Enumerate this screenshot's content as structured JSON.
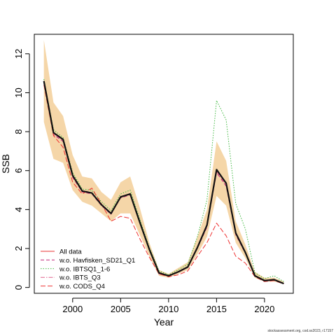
{
  "chart_data": {
    "type": "line",
    "xlabel": "Year",
    "ylabel": "SSB",
    "xlim": [
      1996,
      2023
    ],
    "ylim": [
      -0.3,
      13.0
    ],
    "xticks": [
      2000,
      2005,
      2010,
      2015,
      2020
    ],
    "yticks": [
      0,
      2,
      4,
      6,
      8,
      10,
      12
    ],
    "grid": false,
    "legend_position": "bottom-left",
    "x": [
      1997,
      1998,
      1999,
      2000,
      2001,
      2002,
      2003,
      2004,
      2005,
      2006,
      2007,
      2008,
      2009,
      2010,
      2011,
      2012,
      2013,
      2014,
      2015,
      2016,
      2017,
      2018,
      2019,
      2020,
      2021,
      2022
    ],
    "band": {
      "color": "#f5d6a8",
      "lower": [
        8.5,
        6.6,
        6.4,
        5.0,
        4.4,
        4.2,
        3.8,
        3.4,
        3.8,
        3.8,
        2.7,
        1.6,
        0.6,
        0.5,
        0.7,
        0.9,
        1.7,
        2.6,
        4.7,
        4.2,
        2.3,
        1.5,
        0.5,
        0.3,
        0.3,
        0.2
      ],
      "upper": [
        12.7,
        9.5,
        8.8,
        6.8,
        5.7,
        5.6,
        4.9,
        4.5,
        5.4,
        5.7,
        4.1,
        2.3,
        0.9,
        0.7,
        1.0,
        1.3,
        2.6,
        4.0,
        7.5,
        6.5,
        3.4,
        2.2,
        0.8,
        0.5,
        0.5,
        0.3
      ]
    },
    "series": [
      {
        "name": "All data",
        "color": "#e83030",
        "dash": "",
        "width": 1,
        "values": [
          10.6,
          7.95,
          7.6,
          5.75,
          4.95,
          4.85,
          4.25,
          3.8,
          4.65,
          4.8,
          3.35,
          1.95,
          0.75,
          0.6,
          0.8,
          1.05,
          2.05,
          3.2,
          6.05,
          5.35,
          2.8,
          1.8,
          0.6,
          0.35,
          0.4,
          0.2
        ]
      },
      {
        "name": "w.o. Havfisken_SD21_Q1",
        "color": "#c0287a",
        "dash": "5,3",
        "width": 1,
        "values": [
          10.5,
          7.85,
          7.5,
          5.65,
          4.9,
          4.8,
          4.2,
          3.75,
          4.6,
          4.75,
          3.3,
          1.9,
          0.7,
          0.58,
          0.78,
          1.03,
          2.0,
          3.1,
          5.9,
          5.2,
          2.7,
          1.75,
          0.58,
          0.33,
          0.38,
          0.19
        ]
      },
      {
        "name": "w.o. IBTSQ1_1-6",
        "color": "#3fb83f",
        "dash": "1.5,2",
        "width": 1,
        "values": [
          10.7,
          8.1,
          7.7,
          5.9,
          5.05,
          5.0,
          4.4,
          3.95,
          4.8,
          5.0,
          3.5,
          2.05,
          0.85,
          0.65,
          0.9,
          1.2,
          2.6,
          4.5,
          9.6,
          8.6,
          4.3,
          3.0,
          0.75,
          0.45,
          0.6,
          0.3
        ]
      },
      {
        "name": "w.o. IBTS_Q3",
        "color": "#e0608a",
        "dash": "6,2,1.5,2",
        "width": 1,
        "values": [
          10.55,
          7.9,
          7.55,
          5.7,
          4.92,
          4.82,
          4.22,
          3.78,
          4.62,
          4.78,
          3.32,
          1.93,
          0.73,
          0.59,
          0.79,
          1.04,
          2.02,
          3.15,
          5.95,
          5.25,
          2.75,
          1.78,
          0.59,
          0.34,
          0.39,
          0.19
        ]
      },
      {
        "name": "w.o. CODS_Q4",
        "color": "#ee3030",
        "dash": "7,3",
        "width": 1,
        "values": [
          10.4,
          7.8,
          7.2,
          5.4,
          4.8,
          5.1,
          4.3,
          3.4,
          3.65,
          3.55,
          2.5,
          1.55,
          0.7,
          0.55,
          0.65,
          0.85,
          1.6,
          2.3,
          3.3,
          2.65,
          1.6,
          1.25,
          0.55,
          0.3,
          0.35,
          0.18
        ]
      },
      {
        "name": "",
        "color": "#111111",
        "dash": "",
        "width": 2.2,
        "values": [
          10.6,
          7.95,
          7.6,
          5.75,
          4.95,
          4.85,
          4.25,
          3.8,
          4.65,
          4.8,
          3.35,
          1.95,
          0.75,
          0.6,
          0.8,
          1.05,
          2.05,
          3.2,
          6.05,
          5.35,
          2.8,
          1.8,
          0.6,
          0.35,
          0.4,
          0.2
        ]
      }
    ]
  },
  "footer": {
    "watermark": "stockassessment.org, cod.ss2023, r17157"
  }
}
